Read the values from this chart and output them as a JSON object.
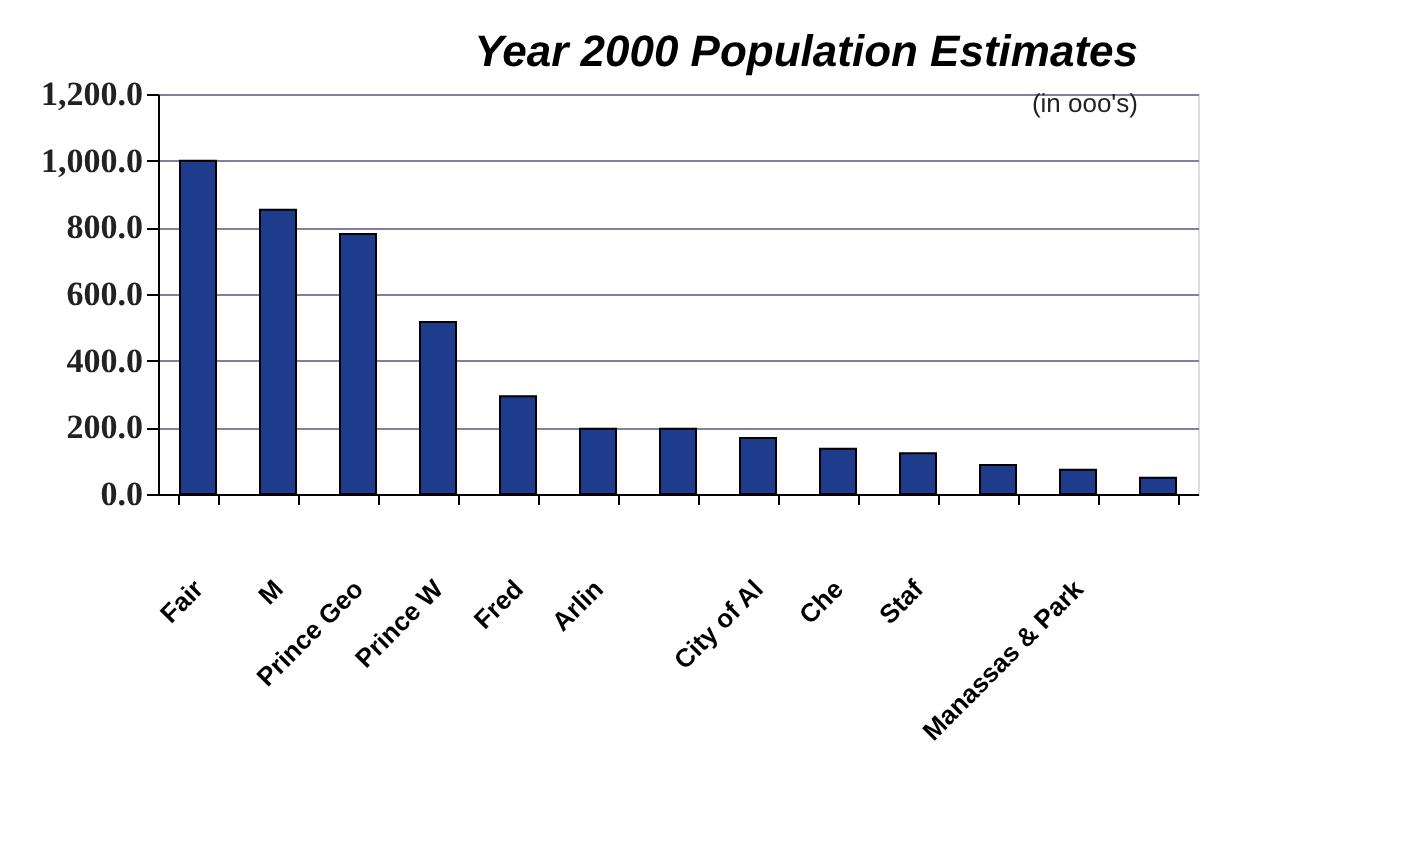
{
  "chart_data": {
    "type": "bar",
    "title": "Year 2000 Population Estimates",
    "subtitle": "(in ooo's)",
    "categories": [
      "Fair",
      "M",
      "Prince Geo",
      "Prince W",
      "Fred",
      "Arlin",
      null,
      "City of Al",
      "Che",
      "Staf",
      null,
      "Manassas & Park",
      null
    ],
    "values": [
      1000,
      853,
      780,
      516,
      293,
      196,
      196,
      168,
      136,
      122,
      87,
      73,
      49
    ],
    "color": "#1f3c8c",
    "ylim": [
      0,
      1200
    ],
    "yticks": [
      {
        "value": 0,
        "label": "0.0"
      },
      {
        "value": 200,
        "label": "200.0"
      },
      {
        "value": 400,
        "label": "400.0"
      },
      {
        "value": 600,
        "label": "600.0"
      },
      {
        "value": 800,
        "label": "800.0"
      },
      {
        "value": 1000,
        "label": "1,000.0"
      },
      {
        "value": 1200,
        "label": "1,200.0"
      }
    ],
    "grid": "y"
  }
}
